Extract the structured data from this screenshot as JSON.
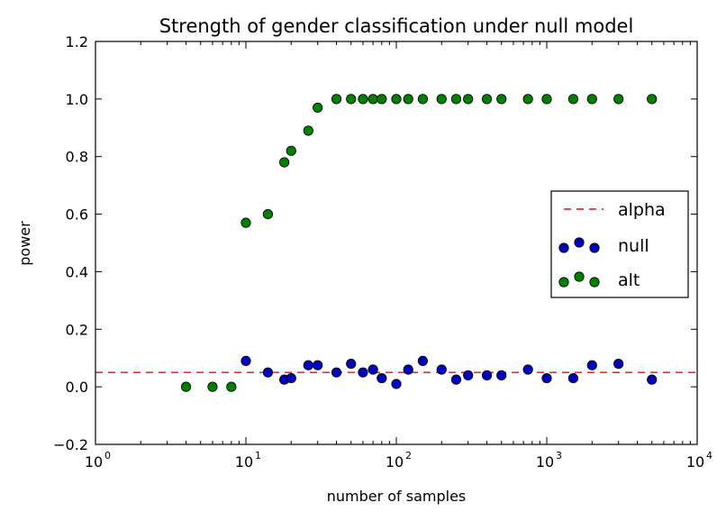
{
  "chart_data": {
    "type": "scatter",
    "title": "Strength of gender classification under null model",
    "xlabel": "number of samples",
    "ylabel": "power",
    "xscale": "log",
    "xlim": [
      1,
      10000
    ],
    "ylim": [
      -0.2,
      1.2
    ],
    "x_ticks": [
      {
        "base": "10",
        "exp": "0"
      },
      {
        "base": "10",
        "exp": "1"
      },
      {
        "base": "10",
        "exp": "2"
      },
      {
        "base": "10",
        "exp": "3"
      },
      {
        "base": "10",
        "exp": "4"
      }
    ],
    "y_ticks": [
      "−0.2",
      "0.0",
      "0.2",
      "0.4",
      "0.6",
      "0.8",
      "1.0",
      "1.2"
    ],
    "legend_position": "center-right",
    "alpha": {
      "name": "alpha",
      "value": 0.05,
      "color": "#ff0000",
      "style": "dashed"
    },
    "series": [
      {
        "name": "null",
        "color": "#0000bf",
        "points": [
          [
            10,
            0.09
          ],
          [
            14,
            0.05
          ],
          [
            18,
            0.025
          ],
          [
            20,
            0.03
          ],
          [
            26,
            0.075
          ],
          [
            30,
            0.075
          ],
          [
            40,
            0.05
          ],
          [
            50,
            0.08
          ],
          [
            60,
            0.05
          ],
          [
            70,
            0.06
          ],
          [
            80,
            0.03
          ],
          [
            100,
            0.01
          ],
          [
            120,
            0.06
          ],
          [
            150,
            0.09
          ],
          [
            200,
            0.06
          ],
          [
            250,
            0.025
          ],
          [
            300,
            0.04
          ],
          [
            400,
            0.04
          ],
          [
            500,
            0.04
          ],
          [
            750,
            0.06
          ],
          [
            1000,
            0.03
          ],
          [
            1500,
            0.03
          ],
          [
            2000,
            0.075
          ],
          [
            3000,
            0.08
          ],
          [
            5000,
            0.025
          ]
        ]
      },
      {
        "name": "alt",
        "color": "#007f00",
        "points": [
          [
            4,
            0.0
          ],
          [
            6,
            0.0
          ],
          [
            8,
            0.0
          ],
          [
            10,
            0.57
          ],
          [
            14,
            0.6
          ],
          [
            18,
            0.78
          ],
          [
            20,
            0.82
          ],
          [
            26,
            0.89
          ],
          [
            30,
            0.97
          ],
          [
            40,
            1.0
          ],
          [
            50,
            1.0
          ],
          [
            60,
            1.0
          ],
          [
            70,
            1.0
          ],
          [
            80,
            1.0
          ],
          [
            100,
            1.0
          ],
          [
            120,
            1.0
          ],
          [
            150,
            1.0
          ],
          [
            200,
            1.0
          ],
          [
            250,
            1.0
          ],
          [
            300,
            1.0
          ],
          [
            400,
            1.0
          ],
          [
            500,
            1.0
          ],
          [
            750,
            1.0
          ],
          [
            1000,
            1.0
          ],
          [
            1500,
            1.0
          ],
          [
            2000,
            1.0
          ],
          [
            3000,
            1.0
          ],
          [
            5000,
            1.0
          ]
        ]
      }
    ]
  }
}
